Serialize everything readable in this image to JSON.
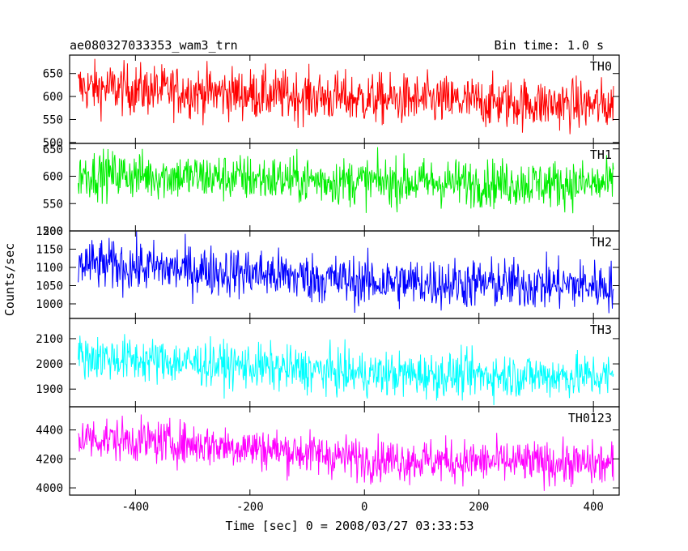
{
  "chart_data": {
    "type": "line",
    "title": "ae080327033353_wam3_trn",
    "subtitle": "Bin time: 1.0 s",
    "xlabel": "Time [sec] 0 = 2008/03/27 03:33:53",
    "ylabel": "Counts/sec",
    "xlim": [
      -515,
      445
    ],
    "x_range": [
      -500,
      435
    ],
    "xticks": [
      -400,
      -200,
      0,
      200,
      400
    ],
    "grid": false,
    "panels": [
      {
        "name": "TH0",
        "color": "#ff0000",
        "ylim": [
          498,
          690
        ],
        "yticks": [
          500,
          550,
          600,
          650
        ],
        "trend": [
          [
            -500,
            620
          ],
          [
            -250,
            608
          ],
          [
            0,
            595
          ],
          [
            435,
            580
          ]
        ],
        "amplitude": 28
      },
      {
        "name": "TH1",
        "color": "#00ee00",
        "ylim": [
          500,
          660
        ],
        "yticks": [
          500,
          550,
          600,
          650
        ],
        "trend": [
          [
            -500,
            605
          ],
          [
            0,
            590
          ],
          [
            435,
            585
          ]
        ],
        "amplitude": 22
      },
      {
        "name": "TH2",
        "color": "#0000ff",
        "ylim": [
          960,
          1200
        ],
        "yticks": [
          1000,
          1050,
          1100,
          1150,
          1200
        ],
        "trend": [
          [
            -500,
            1110
          ],
          [
            -200,
            1085
          ],
          [
            0,
            1060
          ],
          [
            435,
            1050
          ]
        ],
        "amplitude": 35
      },
      {
        "name": "TH3",
        "color": "#00ffff",
        "ylim": [
          1830,
          2180
        ],
        "yticks": [
          1900,
          2000,
          2100
        ],
        "trend": [
          [
            -500,
            2030
          ],
          [
            -200,
            1990
          ],
          [
            0,
            1960
          ],
          [
            435,
            1950
          ]
        ],
        "amplitude": 45
      },
      {
        "name": "TH0123",
        "color": "#ff00ff",
        "ylim": [
          3950,
          4560
        ],
        "yticks": [
          4000,
          4200,
          4400
        ],
        "trend": [
          [
            -500,
            4350
          ],
          [
            -200,
            4280
          ],
          [
            0,
            4200
          ],
          [
            435,
            4160
          ]
        ],
        "amplitude": 75
      }
    ]
  }
}
